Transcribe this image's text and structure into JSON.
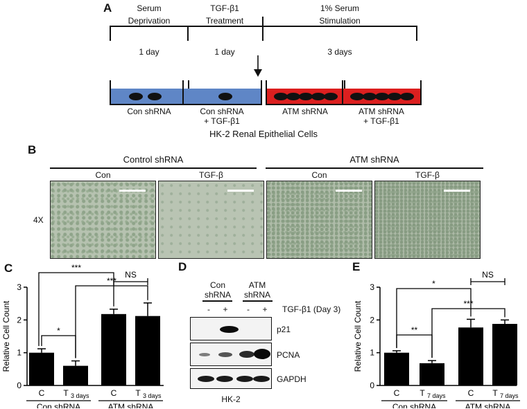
{
  "panels": {
    "a": "A",
    "b": "B",
    "c": "C",
    "d": "D",
    "e": "E"
  },
  "timeline": {
    "phases": [
      {
        "label_line1": "Serum",
        "label_line2": "Deprivation",
        "duration": "1 day"
      },
      {
        "label_line1": "TGF-β1",
        "label_line2": "Treatment",
        "duration": "1 day"
      },
      {
        "label_line1": "1% Serum",
        "label_line2": "Stimulation",
        "duration": "3 days"
      }
    ],
    "dishes": [
      {
        "label_line1": "Con shRNA",
        "label_line2": "",
        "medium_color": "#5f86c6"
      },
      {
        "label_line1": "Con shRNA",
        "label_line2": "+ TGF-β1",
        "medium_color": "#5f86c6"
      },
      {
        "label_line1": "ATM shRNA",
        "label_line2": "",
        "medium_color": "#dc1f1f"
      },
      {
        "label_line1": "ATM shRNA",
        "label_line2": "+ TGF-β1",
        "medium_color": "#dc1f1f"
      }
    ],
    "caption": "HK-2 Renal Epithelial Cells"
  },
  "micrographs": {
    "groups": [
      "Control shRNA",
      "ATM shRNA"
    ],
    "conditions": [
      "Con",
      "TGF-β",
      "Con",
      "TGF-β"
    ],
    "magnification": "4X"
  },
  "western_blot": {
    "header_groups": [
      {
        "line1": "Con",
        "line2": "shRNA"
      },
      {
        "line1": "ATM",
        "line2": "shRNA"
      }
    ],
    "treatment_label": "TGF-β1 (Day 3)",
    "treatment_marks": [
      "-",
      "+",
      "-",
      "+"
    ],
    "bands": [
      "p21",
      "PCNA",
      "GAPDH"
    ],
    "cell_line": "HK-2"
  },
  "chart_data": [
    {
      "type": "bar",
      "panel": "C",
      "ylabel": "Relative Cell Count",
      "ylim": [
        0,
        3
      ],
      "yticks": [
        "0",
        "1",
        "2",
        "3"
      ],
      "categories": [
        "C",
        "T3 days",
        "C",
        "T3 days"
      ],
      "category_main": [
        "C",
        "T",
        "C",
        "T"
      ],
      "category_sub": [
        "",
        "3 days",
        "",
        "3 days"
      ],
      "values": [
        1.0,
        0.6,
        2.18,
        2.12
      ],
      "errors": [
        0.12,
        0.15,
        0.15,
        0.4
      ],
      "groups": [
        "Con shRNA",
        "ATM shRNA"
      ],
      "significance": [
        "***",
        "NS",
        "***",
        "*"
      ],
      "bar_color": "#000000"
    },
    {
      "type": "bar",
      "panel": "E",
      "ylabel": "Relative Cell Count",
      "ylim": [
        0,
        3
      ],
      "yticks": [
        "0",
        "1",
        "2",
        "3"
      ],
      "categories": [
        "C",
        "T7 days",
        "C",
        "T7 days"
      ],
      "category_main": [
        "C",
        "T",
        "C",
        "T"
      ],
      "category_sub": [
        "",
        "7 days",
        "",
        "7 days"
      ],
      "values": [
        1.0,
        0.68,
        1.77,
        1.88
      ],
      "errors": [
        0.06,
        0.08,
        0.25,
        0.12
      ],
      "groups": [
        "Con shRNA",
        "ATM shRNA"
      ],
      "significance": [
        "*",
        "NS",
        "**",
        "***"
      ],
      "bar_color": "#000000"
    }
  ]
}
